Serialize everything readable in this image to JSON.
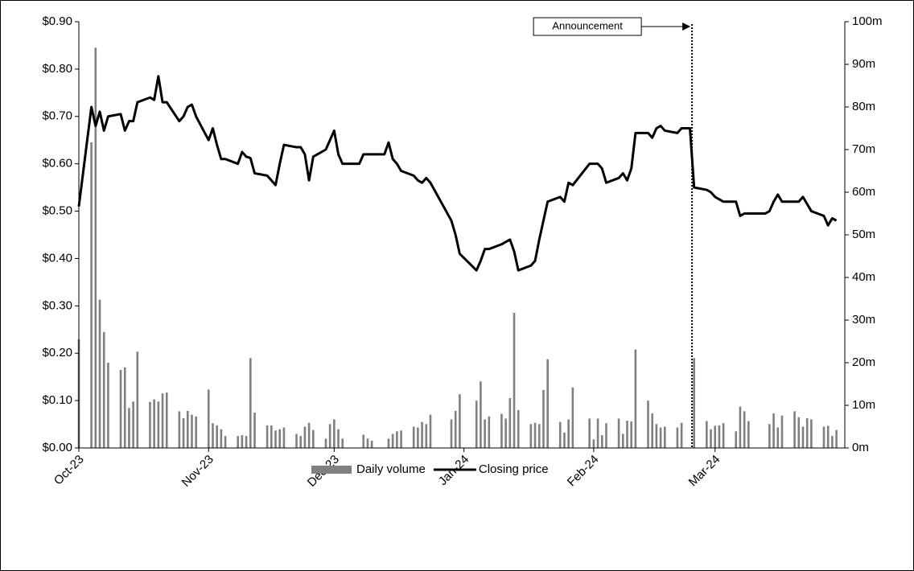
{
  "chart_data": {
    "type": "combo",
    "x": [
      0,
      3,
      4,
      5,
      6,
      7,
      10,
      11,
      12,
      13,
      14,
      17,
      18,
      19,
      20,
      21,
      24,
      25,
      26,
      27,
      28,
      31,
      32,
      33,
      34,
      35,
      38,
      39,
      40,
      41,
      42,
      45,
      46,
      47,
      48,
      49,
      52,
      53,
      54,
      55,
      56,
      59,
      60,
      61,
      62,
      63,
      66,
      67,
      68,
      69,
      70,
      73,
      74,
      75,
      76,
      77,
      80,
      81,
      82,
      83,
      84,
      89,
      90,
      91,
      95,
      96,
      97,
      98,
      101,
      102,
      103,
      104,
      105,
      108,
      109,
      110,
      111,
      112,
      115,
      116,
      117,
      118,
      122,
      123,
      124,
      125,
      126,
      129,
      130,
      131,
      132,
      133,
      136,
      137,
      138,
      139,
      140,
      143,
      144,
      145,
      146,
      147,
      150,
      151,
      152,
      153,
      154,
      157,
      158,
      159,
      160,
      161,
      164,
      165,
      166,
      167,
      168,
      171,
      172,
      173,
      174,
      175,
      178,
      179,
      180,
      181
    ],
    "series": [
      {
        "name": "Daily volume",
        "type": "bar",
        "axis": "y2",
        "color": "#808080",
        "values": [
          25.5,
          71.7,
          93.9,
          34.8,
          27.2,
          20,
          18.3,
          18.9,
          9.4,
          10.9,
          22.6,
          10.8,
          11.4,
          10.9,
          12.8,
          13,
          8.6,
          7,
          8.7,
          7.8,
          7.4,
          13.7,
          5.8,
          5.3,
          4.4,
          2.8,
          2.8,
          3,
          2.8,
          21.1,
          8.3,
          5.3,
          5.3,
          4.1,
          4.4,
          4.8,
          3.3,
          2.8,
          5,
          5.9,
          4.2,
          2.2,
          5.6,
          6.7,
          4.4,
          2.2,
          0,
          0,
          3.1,
          2.2,
          1.7,
          0,
          2.2,
          3.3,
          3.9,
          4.1,
          5,
          4.8,
          6.1,
          5.6,
          7.8,
          6.7,
          8.7,
          12.6,
          11.1,
          15.6,
          6.7,
          7.4,
          8,
          6.9,
          11.7,
          31.7,
          8.9,
          5.6,
          5.9,
          5.6,
          13.6,
          20.8,
          6.1,
          3.6,
          6.7,
          14.2,
          6.9,
          2,
          6.9,
          3,
          5.8,
          6.9,
          3.3,
          6.4,
          6.2,
          23.1,
          11.1,
          8.1,
          5.6,
          4.8,
          5,
          4.8,
          5.9,
          0,
          0,
          21.1,
          6.3,
          4.4,
          5.2,
          5.3,
          5.8,
          3.9,
          9.7,
          8.6,
          6.3,
          0,
          0,
          5.6,
          8.1,
          4.8,
          7.6,
          8.6,
          7.2,
          5,
          7,
          6.7,
          5,
          5.2,
          2.8,
          4.2
        ]
      },
      {
        "name": "Closing price",
        "type": "line",
        "color": "#000000",
        "values": [
          0.51,
          0.72,
          0.68,
          0.71,
          0.67,
          0.7,
          0.705,
          0.67,
          0.69,
          0.69,
          0.73,
          0.74,
          0.735,
          0.785,
          0.73,
          0.73,
          0.69,
          0.7,
          0.72,
          0.725,
          0.7,
          0.65,
          0.675,
          0.64,
          0.61,
          0.61,
          0.6,
          0.625,
          0.615,
          0.612,
          0.58,
          0.575,
          0.565,
          0.555,
          0.6,
          0.64,
          0.635,
          0.635,
          0.62,
          0.565,
          0.615,
          0.63,
          0.65,
          0.67,
          0.62,
          0.6,
          0.6,
          0.6,
          0.62,
          0.62,
          0.62,
          0.62,
          0.645,
          0.61,
          0.6,
          0.585,
          0.575,
          0.565,
          0.56,
          0.57,
          0.56,
          0.48,
          0.45,
          0.41,
          0.375,
          0.395,
          0.42,
          0.42,
          0.43,
          0.435,
          0.44,
          0.415,
          0.375,
          0.385,
          0.395,
          0.44,
          0.48,
          0.52,
          0.53,
          0.52,
          0.56,
          0.555,
          0.6,
          0.6,
          0.6,
          0.59,
          0.56,
          0.57,
          0.58,
          0.565,
          0.59,
          0.665,
          0.665,
          0.655,
          0.675,
          0.68,
          0.67,
          0.665,
          0.675,
          0.675,
          0.675,
          0.55,
          0.545,
          0.54,
          0.53,
          0.525,
          0.52,
          0.52,
          0.49,
          0.495,
          0.495,
          0.495,
          0.495,
          0.5,
          0.52,
          0.535,
          0.52,
          0.52,
          0.52,
          0.53,
          0.515,
          0.5,
          0.49,
          0.47,
          0.485,
          0.48
        ]
      }
    ],
    "xlim": [
      0,
      183
    ],
    "xticks": [
      {
        "value": 0,
        "label": "Oct-23"
      },
      {
        "value": 31,
        "label": "Nov-23"
      },
      {
        "value": 61,
        "label": "Dec-23"
      },
      {
        "value": 92,
        "label": "Jan-24"
      },
      {
        "value": 123,
        "label": "Feb-24"
      },
      {
        "value": 152,
        "label": "Mar-24"
      }
    ],
    "ylim": [
      0,
      0.9
    ],
    "yticks": [
      {
        "value": 0,
        "label": "$0.00"
      },
      {
        "value": 0.1,
        "label": "$0.10"
      },
      {
        "value": 0.2,
        "label": "$0.20"
      },
      {
        "value": 0.3,
        "label": "$0.30"
      },
      {
        "value": 0.4,
        "label": "$0.40"
      },
      {
        "value": 0.5,
        "label": "$0.50"
      },
      {
        "value": 0.6,
        "label": "$0.60"
      },
      {
        "value": 0.7,
        "label": "$0.70"
      },
      {
        "value": 0.8,
        "label": "$0.80"
      },
      {
        "value": 0.9,
        "label": "$0.90"
      }
    ],
    "y2lim": [
      0,
      100
    ],
    "y2ticks": [
      {
        "value": 0,
        "label": "0m"
      },
      {
        "value": 10,
        "label": "10m"
      },
      {
        "value": 20,
        "label": "20m"
      },
      {
        "value": 30,
        "label": "30m"
      },
      {
        "value": 40,
        "label": "40m"
      },
      {
        "value": 50,
        "label": "50m"
      },
      {
        "value": 60,
        "label": "60m"
      },
      {
        "value": 70,
        "label": "70m"
      },
      {
        "value": 80,
        "label": "80m"
      },
      {
        "value": 90,
        "label": "90m"
      },
      {
        "value": 100,
        "label": "100m"
      }
    ],
    "annotation": {
      "text": "Announcement",
      "x": 146.5
    },
    "legend": "bottom"
  }
}
